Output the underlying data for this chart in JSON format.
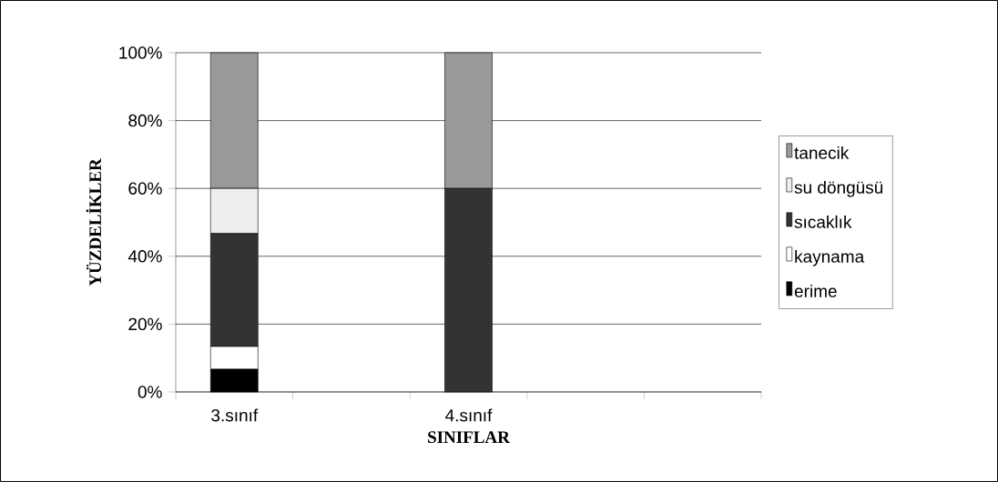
{
  "chart_data": {
    "type": "bar",
    "stacked": true,
    "xlabel": "SINIFLAR",
    "ylabel": "YÜZDELİKLER",
    "categories": [
      "3.sınıf",
      null,
      "4.sınıf",
      null,
      null
    ],
    "series": [
      {
        "name": "erime",
        "color": "#000000",
        "values": [
          6.7,
          null,
          0,
          null,
          null
        ]
      },
      {
        "name": "kaynama",
        "color": "#ffffff",
        "values": [
          6.7,
          null,
          0,
          null,
          null
        ]
      },
      {
        "name": "sıcaklık",
        "color": "#333333",
        "values": [
          33.3,
          null,
          60,
          null,
          null
        ]
      },
      {
        "name": "su döngüsü",
        "color": "#eeeeee",
        "values": [
          13.3,
          null,
          0,
          null,
          null
        ]
      },
      {
        "name": "tanecik",
        "color": "#999999",
        "values": [
          40,
          null,
          40,
          null,
          null
        ]
      }
    ],
    "ylim": [
      0,
      100
    ],
    "yticks": [
      {
        "value": 0,
        "label": "0%"
      },
      {
        "value": 20,
        "label": "20%"
      },
      {
        "value": 40,
        "label": "40%"
      },
      {
        "value": 60,
        "label": "60%"
      },
      {
        "value": 80,
        "label": "80%"
      },
      {
        "value": 100,
        "label": "100%"
      }
    ],
    "grid": "y",
    "legend": "right"
  }
}
